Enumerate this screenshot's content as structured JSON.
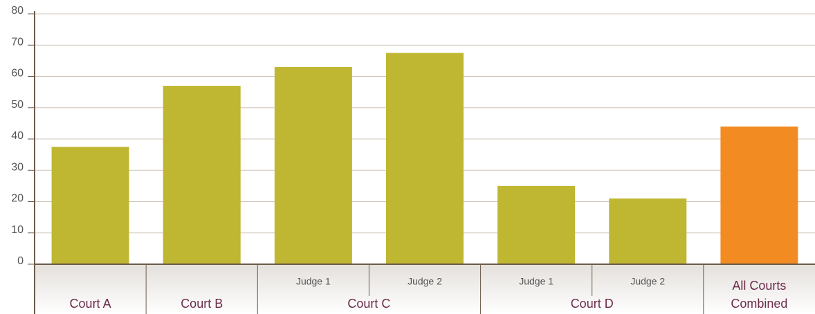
{
  "chart_data": {
    "type": "bar",
    "groups": [
      {
        "name": "Court A",
        "bars": [
          {
            "label": null,
            "value": 37.5,
            "color": "#bfb731"
          }
        ]
      },
      {
        "name": "Court B",
        "bars": [
          {
            "label": null,
            "value": 57,
            "color": "#bfb731"
          }
        ]
      },
      {
        "name": "Court C",
        "bars": [
          {
            "label": "Judge 1",
            "value": 63,
            "color": "#bfb731"
          },
          {
            "label": "Judge 2",
            "value": 67.5,
            "color": "#bfb731"
          }
        ]
      },
      {
        "name": "Court D",
        "bars": [
          {
            "label": "Judge 1",
            "value": 25,
            "color": "#bfb731"
          },
          {
            "label": "Judge 2",
            "value": 21,
            "color": "#bfb731"
          }
        ]
      },
      {
        "name": "All Courts Combined",
        "bars": [
          {
            "label": null,
            "value": 44,
            "color": "#f28c22"
          }
        ]
      }
    ],
    "ylim": [
      0,
      80
    ],
    "yticks": [
      0,
      10,
      20,
      30,
      40,
      50,
      60,
      70,
      80
    ],
    "grid": true
  }
}
